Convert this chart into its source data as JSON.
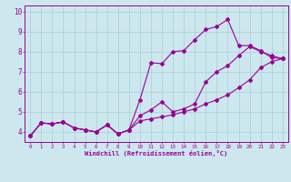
{
  "xlabel": "Windchill (Refroidissement éolien,°C)",
  "bg_color": "#cce8ee",
  "line_color": "#990099",
  "grid_color": "#aaccd4",
  "xlim": [
    -0.5,
    23.5
  ],
  "ylim": [
    3.5,
    10.3
  ],
  "xticks": [
    0,
    1,
    2,
    3,
    4,
    5,
    6,
    7,
    8,
    9,
    10,
    11,
    12,
    13,
    14,
    15,
    16,
    17,
    18,
    19,
    20,
    21,
    22,
    23
  ],
  "yticks": [
    4,
    5,
    6,
    7,
    8,
    9,
    10
  ],
  "line1_x": [
    0,
    1,
    2,
    3,
    4,
    5,
    6,
    7,
    8,
    9,
    10,
    11,
    12,
    13,
    14,
    15,
    16,
    17,
    18,
    19,
    20,
    21,
    22,
    23
  ],
  "line1_y": [
    3.8,
    4.45,
    4.4,
    4.5,
    4.2,
    4.1,
    4.0,
    4.35,
    3.9,
    4.1,
    5.6,
    7.45,
    7.4,
    8.0,
    8.05,
    8.6,
    9.1,
    9.25,
    9.6,
    8.3,
    8.3,
    8.05,
    7.7,
    7.65
  ],
  "line2_x": [
    0,
    1,
    2,
    3,
    4,
    5,
    6,
    7,
    8,
    9,
    10,
    11,
    12,
    13,
    14,
    15,
    16,
    17,
    18,
    19,
    20,
    21,
    22,
    23
  ],
  "line2_y": [
    3.8,
    4.45,
    4.4,
    4.5,
    4.2,
    4.1,
    4.0,
    4.35,
    3.9,
    4.1,
    4.8,
    5.1,
    5.5,
    5.0,
    5.15,
    5.4,
    6.5,
    7.0,
    7.3,
    7.8,
    8.25,
    8.0,
    7.8,
    7.65
  ],
  "line3_x": [
    0,
    1,
    2,
    3,
    4,
    5,
    6,
    7,
    8,
    9,
    10,
    11,
    12,
    13,
    14,
    15,
    16,
    17,
    18,
    19,
    20,
    21,
    22,
    23
  ],
  "line3_y": [
    3.8,
    4.45,
    4.4,
    4.5,
    4.2,
    4.1,
    4.0,
    4.35,
    3.9,
    4.1,
    4.55,
    4.65,
    4.75,
    4.85,
    5.0,
    5.15,
    5.4,
    5.6,
    5.85,
    6.2,
    6.6,
    7.2,
    7.5,
    7.65
  ]
}
